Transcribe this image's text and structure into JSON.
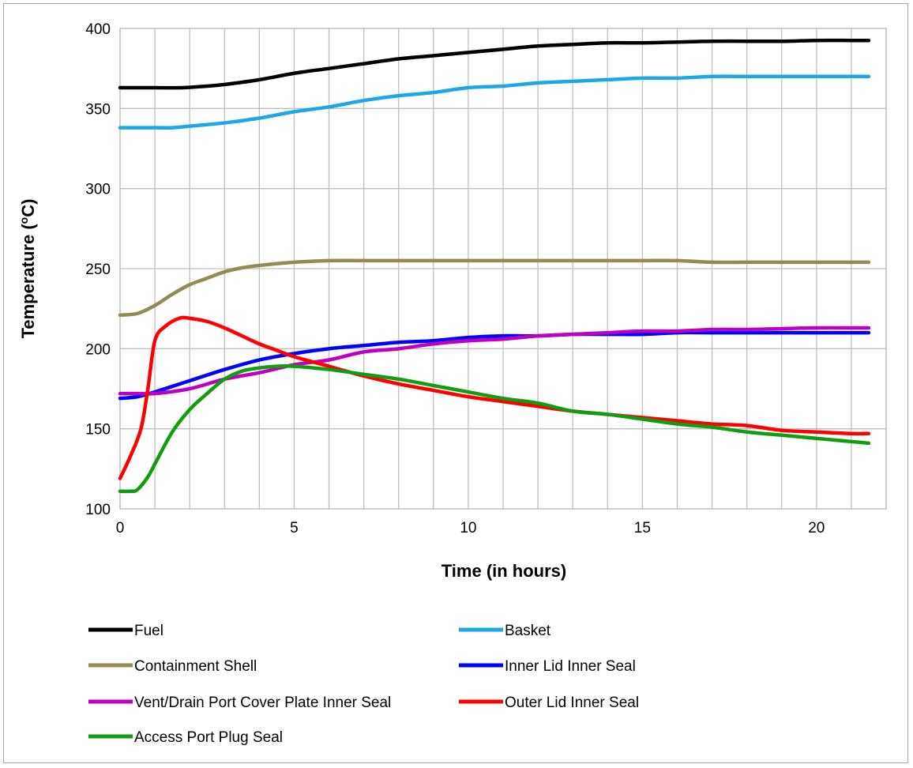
{
  "chart_data": {
    "type": "line",
    "xlabel": "Time (in hours)",
    "ylabel": "Temperature (",
    "ylabel_sup": "o",
    "ylabel_tail": "C)",
    "xlim": [
      0,
      22
    ],
    "ylim": [
      100,
      400
    ],
    "x_ticks": [
      0,
      5,
      10,
      15,
      20
    ],
    "y_ticks": [
      100,
      150,
      200,
      250,
      300,
      350,
      400
    ],
    "x_minor_grid_step": 1,
    "grid": true,
    "legend_position": "bottom",
    "series": [
      {
        "name": "Fuel",
        "color": "#000000",
        "points": [
          [
            0,
            363
          ],
          [
            1,
            363
          ],
          [
            1.8,
            363
          ],
          [
            2.5,
            364
          ],
          [
            3,
            365
          ],
          [
            4,
            368
          ],
          [
            5,
            372
          ],
          [
            6,
            375
          ],
          [
            7,
            378
          ],
          [
            8,
            381
          ],
          [
            9,
            383
          ],
          [
            10,
            385
          ],
          [
            11,
            387
          ],
          [
            12,
            389
          ],
          [
            13,
            390
          ],
          [
            14,
            391
          ],
          [
            15,
            391
          ],
          [
            16,
            391.5
          ],
          [
            17,
            392
          ],
          [
            18,
            392
          ],
          [
            19,
            392
          ],
          [
            20,
            392.5
          ],
          [
            21,
            392.5
          ],
          [
            21.5,
            392.5
          ]
        ]
      },
      {
        "name": "Basket",
        "color": "#1aa8e6",
        "points": [
          [
            0,
            338
          ],
          [
            1,
            338
          ],
          [
            1.5,
            338
          ],
          [
            2,
            339
          ],
          [
            3,
            341
          ],
          [
            4,
            344
          ],
          [
            5,
            348
          ],
          [
            6,
            351
          ],
          [
            7,
            355
          ],
          [
            8,
            358
          ],
          [
            9,
            360
          ],
          [
            10,
            363
          ],
          [
            11,
            364
          ],
          [
            12,
            366
          ],
          [
            13,
            367
          ],
          [
            14,
            368
          ],
          [
            15,
            369
          ],
          [
            16,
            369
          ],
          [
            17,
            370
          ],
          [
            18,
            370
          ],
          [
            19,
            370
          ],
          [
            20,
            370
          ],
          [
            21,
            370
          ],
          [
            21.5,
            370
          ]
        ]
      },
      {
        "name": "Containment Shell",
        "color": "#948a54",
        "points": [
          [
            0,
            221
          ],
          [
            0.5,
            222
          ],
          [
            1,
            227
          ],
          [
            1.5,
            234
          ],
          [
            2,
            240
          ],
          [
            2.5,
            244
          ],
          [
            3,
            248
          ],
          [
            3.5,
            250.5
          ],
          [
            4,
            252
          ],
          [
            5,
            254
          ],
          [
            6,
            255
          ],
          [
            7,
            255
          ],
          [
            8,
            255
          ],
          [
            9,
            255
          ],
          [
            10,
            255
          ],
          [
            11,
            255
          ],
          [
            12,
            255
          ],
          [
            13,
            255
          ],
          [
            14,
            255
          ],
          [
            15,
            255
          ],
          [
            16,
            255
          ],
          [
            17,
            254
          ],
          [
            18,
            254
          ],
          [
            19,
            254
          ],
          [
            20,
            254
          ],
          [
            21,
            254
          ],
          [
            21.5,
            254
          ]
        ]
      },
      {
        "name": "Inner Lid Inner Seal",
        "color": "#0000ff",
        "points": [
          [
            0,
            169
          ],
          [
            0.5,
            170
          ],
          [
            1,
            173
          ],
          [
            2,
            180
          ],
          [
            3,
            187
          ],
          [
            4,
            193
          ],
          [
            5,
            197
          ],
          [
            6,
            200
          ],
          [
            7,
            202
          ],
          [
            8,
            204
          ],
          [
            9,
            205
          ],
          [
            10,
            207
          ],
          [
            11,
            208
          ],
          [
            12,
            208
          ],
          [
            13,
            209
          ],
          [
            14,
            209
          ],
          [
            15,
            209
          ],
          [
            16,
            210
          ],
          [
            17,
            210
          ],
          [
            18,
            210
          ],
          [
            19,
            210
          ],
          [
            20,
            210
          ],
          [
            21,
            210
          ],
          [
            21.5,
            210
          ]
        ]
      },
      {
        "name": "Vent/Drain Port Cover Plate Inner Seal",
        "color": "#c000c0",
        "points": [
          [
            0,
            172
          ],
          [
            0.5,
            172
          ],
          [
            1,
            172
          ],
          [
            2,
            175
          ],
          [
            3,
            181
          ],
          [
            4,
            185
          ],
          [
            5,
            190
          ],
          [
            6,
            193
          ],
          [
            7,
            198
          ],
          [
            8,
            200
          ],
          [
            9,
            203
          ],
          [
            10,
            205
          ],
          [
            11,
            206
          ],
          [
            12,
            208
          ],
          [
            13,
            209
          ],
          [
            14,
            210
          ],
          [
            15,
            211
          ],
          [
            16,
            211
          ],
          [
            17,
            212
          ],
          [
            18,
            212
          ],
          [
            19,
            212.5
          ],
          [
            20,
            213
          ],
          [
            21,
            213
          ],
          [
            21.5,
            213
          ]
        ]
      },
      {
        "name": "Outer Lid Inner Seal",
        "color": "#ff0000",
        "points": [
          [
            0,
            119
          ],
          [
            0.3,
            133
          ],
          [
            0.6,
            150
          ],
          [
            0.8,
            175
          ],
          [
            1,
            205
          ],
          [
            1.3,
            214
          ],
          [
            1.7,
            219
          ],
          [
            2,
            219
          ],
          [
            2.5,
            217
          ],
          [
            3,
            213
          ],
          [
            3.5,
            208
          ],
          [
            4,
            203
          ],
          [
            4.5,
            199
          ],
          [
            5,
            195
          ],
          [
            6,
            189
          ],
          [
            7,
            183
          ],
          [
            8,
            178
          ],
          [
            9,
            174
          ],
          [
            10,
            170
          ],
          [
            11,
            167
          ],
          [
            12,
            164
          ],
          [
            13,
            161
          ],
          [
            14,
            159
          ],
          [
            15,
            157
          ],
          [
            16,
            155
          ],
          [
            17,
            153
          ],
          [
            18,
            152
          ],
          [
            19,
            149
          ],
          [
            20,
            148
          ],
          [
            21,
            147
          ],
          [
            21.5,
            147
          ]
        ]
      },
      {
        "name": "Access Port Plug Seal",
        "color": "#109e10",
        "points": [
          [
            0,
            111
          ],
          [
            0.3,
            111
          ],
          [
            0.5,
            112
          ],
          [
            0.8,
            120
          ],
          [
            1,
            128
          ],
          [
            1.5,
            148
          ],
          [
            2,
            162
          ],
          [
            2.5,
            172
          ],
          [
            3,
            181
          ],
          [
            3.5,
            186
          ],
          [
            4,
            188
          ],
          [
            4.5,
            189
          ],
          [
            5,
            189
          ],
          [
            6,
            187
          ],
          [
            7,
            184
          ],
          [
            8,
            181
          ],
          [
            9,
            177
          ],
          [
            10,
            173
          ],
          [
            11,
            169
          ],
          [
            12,
            166
          ],
          [
            13,
            161
          ],
          [
            14,
            159
          ],
          [
            15,
            156
          ],
          [
            16,
            153
          ],
          [
            17,
            151
          ],
          [
            18,
            148
          ],
          [
            19,
            146
          ],
          [
            20,
            144
          ],
          [
            21,
            142
          ],
          [
            21.5,
            141
          ]
        ]
      }
    ]
  }
}
